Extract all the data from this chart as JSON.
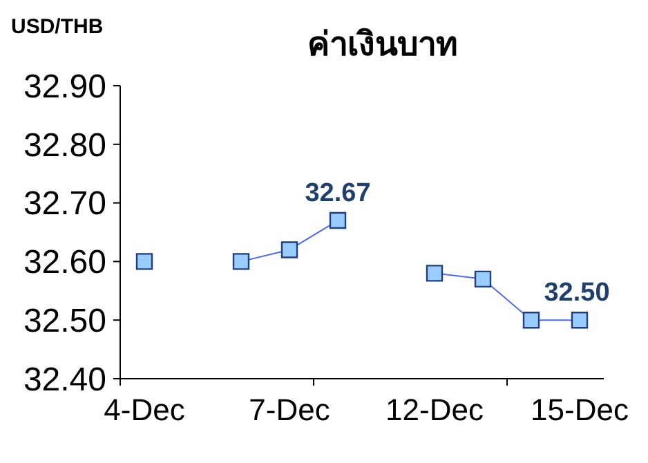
{
  "chart_data": {
    "type": "line",
    "title": "ค่าเงินบาท",
    "ylabel": "USD/THB",
    "categories": [
      "4-Dec",
      null,
      null,
      "7-Dec",
      null,
      null,
      "12-Dec",
      null,
      null,
      "15-Dec"
    ],
    "series": [
      {
        "color": "#99ccff",
        "values": [
          32.6,
          null,
          32.6,
          32.62,
          32.67,
          null,
          32.58,
          32.57,
          32.5,
          32.5
        ],
        "value_labels": [
          null,
          null,
          null,
          null,
          "32.67",
          null,
          null,
          null,
          null,
          "32.50"
        ]
      }
    ],
    "ylim": [
      32.4,
      32.9
    ],
    "yticks": [
      {
        "value": 32.4,
        "label": "32.40"
      },
      {
        "value": 32.5,
        "label": "32.50"
      },
      {
        "value": 32.6,
        "label": "32.60"
      },
      {
        "value": 32.7,
        "label": "32.70"
      },
      {
        "value": 32.8,
        "label": "32.80"
      },
      {
        "value": 32.9,
        "label": "32.90"
      }
    ],
    "grid": false,
    "marker": "square",
    "line_style": "solid"
  }
}
